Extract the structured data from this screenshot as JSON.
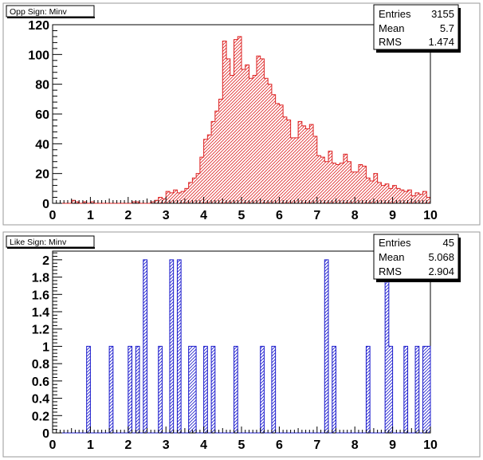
{
  "chart_data": [
    {
      "type": "bar",
      "title": "Opp Sign: Minv",
      "stats": [
        {
          "label": "Entries",
          "value": "3155"
        },
        {
          "label": "Mean",
          "value": "5.7"
        },
        {
          "label": "RMS",
          "value": "1.474"
        }
      ],
      "xlim": [
        0,
        10
      ],
      "ylim": [
        0,
        120
      ],
      "xticks": [
        0,
        1,
        2,
        3,
        4,
        5,
        6,
        7,
        8,
        9,
        10
      ],
      "xtick_labels": [
        "0",
        "1",
        "2",
        "3",
        "4",
        "5",
        "6",
        "7",
        "8",
        "9",
        "10"
      ],
      "yticks": [
        0,
        20,
        40,
        60,
        80,
        100,
        120
      ],
      "ytick_labels": [
        "0",
        "20",
        "40",
        "60",
        "80",
        "100",
        "120"
      ],
      "bin_edges_start": 0,
      "bin_width": 0.1,
      "values": [
        0,
        0,
        0,
        0,
        0,
        2,
        1,
        0,
        1,
        0,
        1,
        0,
        0,
        0,
        0,
        0,
        0,
        0,
        0,
        0,
        0,
        1,
        1,
        0,
        0,
        0,
        1,
        2,
        4,
        3,
        8,
        7,
        9,
        7,
        8,
        10,
        14,
        17,
        20,
        31,
        43,
        46,
        55,
        62,
        70,
        109,
        97,
        86,
        110,
        112,
        90,
        93,
        84,
        86,
        99,
        97,
        84,
        80,
        73,
        67,
        66,
        58,
        56,
        44,
        44,
        55,
        52,
        50,
        53,
        45,
        32,
        31,
        28,
        35,
        27,
        26,
        27,
        33,
        28,
        21,
        21,
        26,
        25,
        17,
        15,
        20,
        14,
        12,
        13,
        10,
        12,
        10,
        9,
        8,
        9,
        5,
        7,
        6,
        8,
        4
      ]
    },
    {
      "type": "bar",
      "title": "Like Sign: Minv",
      "stats": [
        {
          "label": "Entries",
          "value": "45"
        },
        {
          "label": "Mean",
          "value": "5.068"
        },
        {
          "label": "RMS",
          "value": "2.904"
        }
      ],
      "xlim": [
        0,
        10
      ],
      "ylim": [
        0,
        2.1
      ],
      "xticks": [
        0,
        1,
        2,
        3,
        4,
        5,
        6,
        7,
        8,
        9,
        10
      ],
      "xtick_labels": [
        "0",
        "1",
        "2",
        "3",
        "4",
        "5",
        "6",
        "7",
        "8",
        "9",
        "10"
      ],
      "yticks": [
        0,
        0.2,
        0.4,
        0.6,
        0.8,
        1,
        1.2,
        1.4,
        1.6,
        1.8,
        2
      ],
      "ytick_labels": [
        "0",
        "0.2",
        "0.4",
        "0.6",
        "0.8",
        "1",
        "1.2",
        "1.4",
        "1.6",
        "1.8",
        "2"
      ],
      "bin_edges_start": 0,
      "bin_width": 0.1,
      "values": [
        0,
        0,
        0,
        0,
        0,
        0,
        0,
        0,
        0,
        1,
        0,
        0,
        0,
        0,
        0,
        1,
        0,
        0,
        0,
        0,
        1,
        0,
        1,
        0,
        2,
        0,
        0,
        0,
        1,
        0,
        0,
        2,
        0,
        2,
        0,
        0,
        1,
        1,
        0,
        0,
        1,
        0,
        1,
        0,
        0,
        0,
        0,
        0,
        1,
        0,
        0,
        0,
        0,
        0,
        0,
        1,
        0,
        0,
        1,
        0,
        0,
        0,
        0,
        0,
        0,
        0,
        0,
        0,
        0,
        0,
        0,
        0,
        2,
        0,
        1,
        0,
        0,
        0,
        0,
        0,
        0,
        0,
        0,
        1,
        0,
        0,
        0,
        0,
        2,
        1,
        0,
        0,
        0,
        1,
        0,
        0,
        1,
        0,
        1,
        1
      ]
    }
  ],
  "colors": {
    "panel_bg": "#ffffff",
    "frame_bg": "#ffffff",
    "outer_line": "#000000",
    "series_top": "#dd2222",
    "series_bottom": "#1a1acc"
  }
}
